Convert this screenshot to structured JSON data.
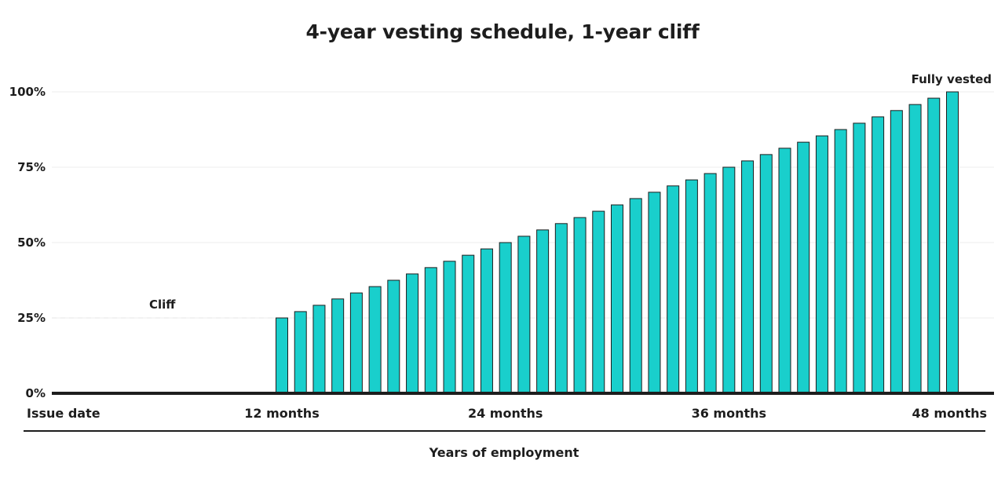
{
  "chart_data": {
    "type": "bar",
    "title": "4-year vesting schedule, 1-year cliff",
    "xlabel": "Years of employment",
    "ylabel": "",
    "ylim": [
      0,
      100
    ],
    "y_ticks": [
      "0%",
      "25%",
      "50%",
      "75%",
      "100%"
    ],
    "x_ticks": [
      {
        "month": 0,
        "label": "Issue date"
      },
      {
        "month": 12,
        "label": "12 months"
      },
      {
        "month": 24,
        "label": "24 months"
      },
      {
        "month": 36,
        "label": "36 months"
      },
      {
        "month": 48,
        "label": "48 months"
      }
    ],
    "x": [
      12,
      13,
      14,
      15,
      16,
      17,
      18,
      19,
      20,
      21,
      22,
      23,
      24,
      25,
      26,
      27,
      28,
      29,
      30,
      31,
      32,
      33,
      34,
      35,
      36,
      37,
      38,
      39,
      40,
      41,
      42,
      43,
      44,
      45,
      46,
      47,
      48
    ],
    "values": [
      25,
      27.1,
      29.2,
      31.3,
      33.3,
      35.4,
      37.5,
      39.6,
      41.7,
      43.8,
      45.8,
      47.9,
      50,
      52.1,
      54.2,
      56.3,
      58.3,
      60.4,
      62.5,
      64.6,
      66.7,
      68.8,
      70.8,
      72.9,
      75,
      77.1,
      79.2,
      81.3,
      83.3,
      85.4,
      87.5,
      89.6,
      91.7,
      93.8,
      95.8,
      97.9,
      100
    ],
    "bar_color": "#19cfcc",
    "bar_stroke": "#1d1d1d",
    "grid": true,
    "annotations": [
      {
        "text": "Cliff",
        "month": 6,
        "value": 25
      },
      {
        "text": "Fully vested",
        "month": 48,
        "value": 100
      }
    ]
  }
}
